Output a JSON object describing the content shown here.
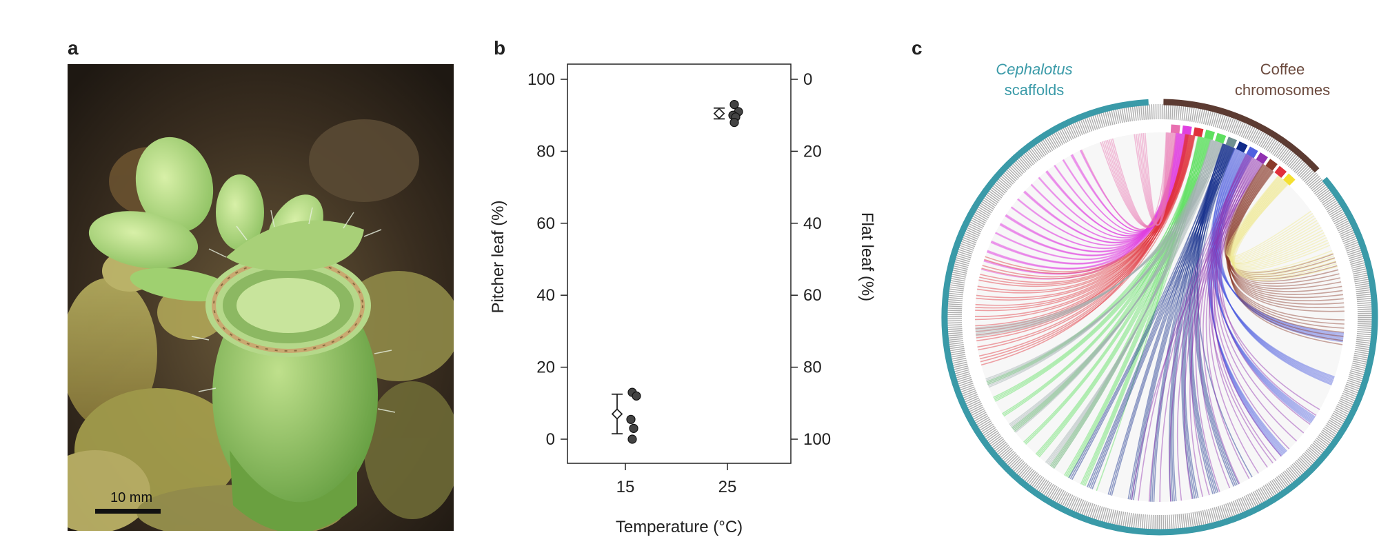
{
  "panels": {
    "a": {
      "letter": "a",
      "scale_bar_label": "10 mm"
    },
    "b": {
      "letter": "b"
    },
    "c": {
      "letter": "c",
      "left_label_line1": "Cephalotus",
      "left_label_line2": "scaffolds",
      "right_label_line1": "Coffee",
      "right_label_line2": "chromosomes"
    }
  },
  "colors": {
    "cephalotus_ring": "#3a9aa8",
    "coffee_ring": "#5c3b32",
    "ceph_label": "#3a9aa8",
    "coffee_label": "#6b4a3e",
    "link_magenta": "#e040e0",
    "link_red": "#e0303a",
    "link_green": "#5ee060",
    "link_navy": "#102a8a",
    "link_slate": "#6f9090",
    "link_purple": "#9030b0",
    "link_brown": "#8a3a2a",
    "link_yellow": "#f5e030",
    "link_pink": "#e870b0",
    "link_blue": "#5060e0"
  },
  "chart_data": {
    "type": "scatter",
    "xlabel": "Temperature (°C)",
    "ylabel": "Pitcher leaf (%)",
    "y2label": "Flat leaf (%)",
    "categories": [
      "15",
      "25"
    ],
    "ylim": [
      0,
      100
    ],
    "y_ticks": [
      "0",
      "20",
      "40",
      "60",
      "80",
      "100"
    ],
    "y2_ticks": [
      "100",
      "80",
      "60",
      "40",
      "20",
      "0"
    ],
    "series": [
      {
        "category": "15",
        "mean": 7,
        "error_low": 1.5,
        "error_high": 12.5,
        "points": [
          13,
          12,
          5.5,
          3,
          0
        ]
      },
      {
        "category": "25",
        "mean": 90.5,
        "error_low": 89,
        "error_high": 92,
        "points": [
          93,
          91,
          90,
          89.5,
          88
        ]
      }
    ]
  }
}
